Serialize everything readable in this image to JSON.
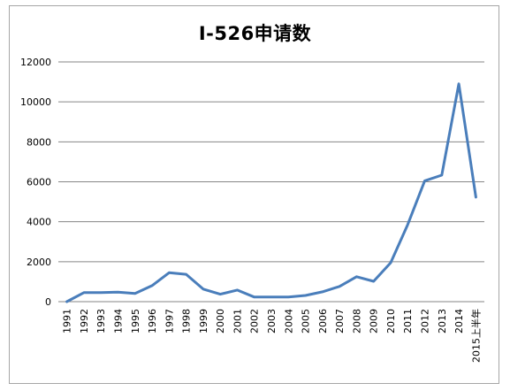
{
  "chart_data": {
    "type": "line",
    "title": "I-526申请数",
    "xlabel": "",
    "ylabel": "",
    "categories": [
      "1991",
      "1992",
      "1993",
      "1994",
      "1995",
      "1996",
      "1997",
      "1998",
      "1999",
      "2000",
      "2001",
      "2002",
      "2003",
      "2004",
      "2005",
      "2006",
      "2007",
      "2008",
      "2009",
      "2010",
      "2011",
      "2012",
      "2013",
      "2014",
      "2015上半年"
    ],
    "series": [
      {
        "values": [
          0,
          450,
          450,
          480,
          410,
          800,
          1450,
          1370,
          630,
          370,
          580,
          230,
          230,
          230,
          310,
          490,
          760,
          1250,
          1020,
          1950,
          3850,
          6050,
          6330,
          10900,
          5230
        ]
      }
    ],
    "ylim": [
      0,
      12000
    ],
    "yticks": [
      0,
      2000,
      4000,
      6000,
      8000,
      10000,
      12000
    ],
    "grid": true,
    "legend": "none",
    "line_color": "#4a7ebb"
  }
}
